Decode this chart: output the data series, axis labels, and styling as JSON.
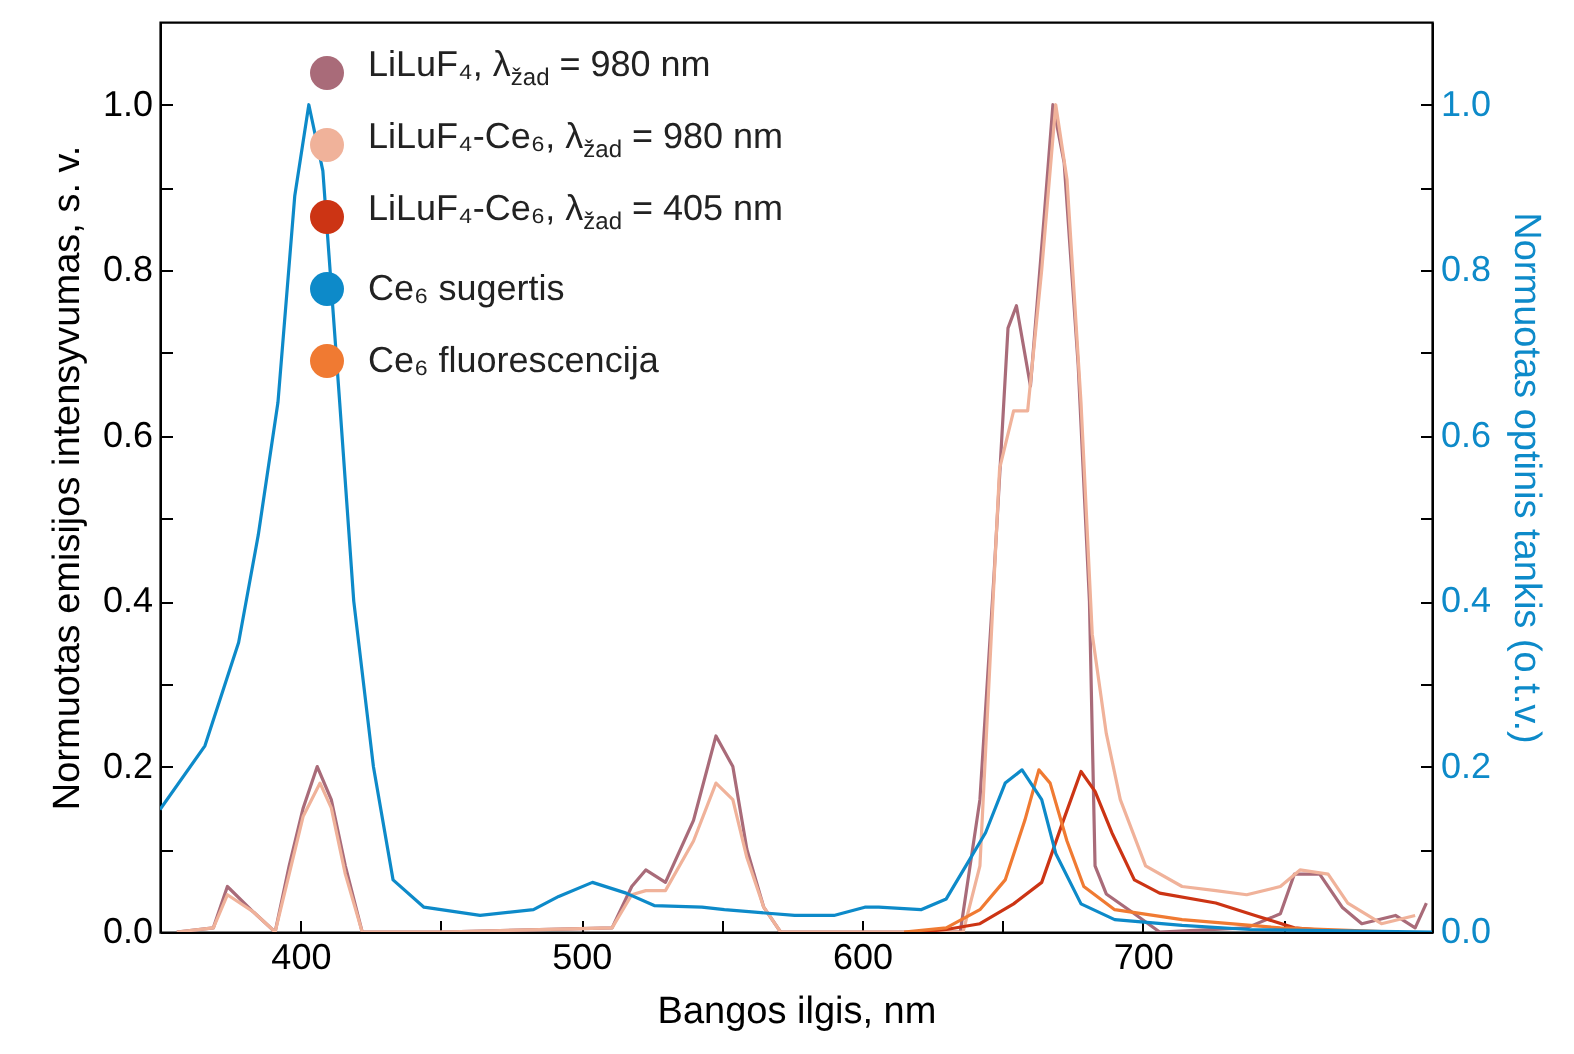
{
  "chart_data": {
    "type": "line",
    "xlabel": "Bangos ilgis, nm",
    "ylabel": "Normuotas emisijos intensyvumas, s. v.",
    "y2label": "Normuotas optinis tankis (o.t.v.)",
    "xlim": [
      350,
      803
    ],
    "ylim": [
      0,
      1.1
    ],
    "y2lim": [
      0,
      1.1
    ],
    "xticks": [
      400,
      {
        "value": 450,
        "label": null
      },
      500,
      {
        "value": 550,
        "label": null
      },
      600,
      {
        "value": 650,
        "label": null
      },
      700,
      {
        "value": 750,
        "label": null
      }
    ],
    "yticks": [
      {
        "value": 0,
        "label": "0.0"
      },
      {
        "value": 0.1,
        "label": null
      },
      0.2,
      {
        "value": 0.3,
        "label": null
      },
      0.4,
      {
        "value": 0.5,
        "label": null
      },
      0.6,
      {
        "value": 0.7,
        "label": null
      },
      0.8,
      {
        "value": 0.9,
        "label": null
      },
      {
        "value": 1,
        "label": "1.0"
      }
    ],
    "y2ticks": [
      {
        "value": 0,
        "label": "0.0"
      },
      {
        "value": 0.1,
        "label": null
      },
      0.2,
      {
        "value": 0.3,
        "label": null
      },
      0.4,
      {
        "value": 0.5,
        "label": null
      },
      0.6,
      {
        "value": 0.7,
        "label": null
      },
      0.8,
      {
        "value": 0.9,
        "label": null
      },
      {
        "value": 1,
        "label": "1.0"
      }
    ],
    "grid": false,
    "legend": "top",
    "series": [
      {
        "name": "LiLuF₄, λ$_{žad}$ = 980 nm",
        "color": "#a96b79",
        "x": [
          356,
          369,
          374,
          383,
          391,
          396,
          401,
          406,
          411,
          416,
          422,
          450,
          511,
          518,
          523,
          530,
          540,
          548,
          554,
          559,
          565,
          571,
          635,
          642,
          647,
          652,
          655,
          660,
          665,
          668,
          672,
          677,
          681,
          683,
          687,
          697,
          706,
          737,
          749,
          754,
          763,
          771,
          778,
          790,
          797,
          801
        ],
        "values": [
          0,
          0.005,
          0.055,
          0.025,
          0,
          0.08,
          0.15,
          0.2,
          0.16,
          0.08,
          0,
          0,
          0.005,
          0.055,
          0.075,
          0.06,
          0.135,
          0.237,
          0.2,
          0.1,
          0.03,
          0,
          0,
          0.16,
          0.43,
          0.73,
          0.757,
          0.66,
          0.87,
          1.0,
          0.93,
          0.685,
          0.4,
          0.08,
          0.046,
          0.022,
          0,
          0.005,
          0.022,
          0.07,
          0.07,
          0.03,
          0.01,
          0.02,
          0.005,
          0.035
        ]
      },
      {
        "name": "LiLuF₄-Ce₆, λ$_{žad}$ = 980 nm",
        "color": "#f0b29a",
        "x": [
          356,
          369,
          374,
          383,
          391,
          396,
          401,
          407,
          411,
          416,
          422,
          450,
          511,
          518,
          523,
          530,
          540,
          548,
          554,
          559,
          565,
          571,
          636,
          642,
          649,
          654,
          659,
          664,
          669,
          673,
          678,
          682,
          687,
          692,
          701,
          714,
          726,
          737,
          749,
          756,
          766,
          773,
          785,
          797
        ],
        "values": [
          0,
          0.005,
          0.045,
          0.025,
          0,
          0.07,
          0.14,
          0.18,
          0.15,
          0.07,
          0,
          0,
          0.005,
          0.045,
          0.05,
          0.05,
          0.11,
          0.18,
          0.16,
          0.09,
          0.03,
          0,
          0,
          0.08,
          0.56,
          0.63,
          0.63,
          0.8,
          1.0,
          0.91,
          0.64,
          0.36,
          0.24,
          0.16,
          0.08,
          0.055,
          0.05,
          0.045,
          0.055,
          0.075,
          0.07,
          0.035,
          0.01,
          0.02
        ]
      },
      {
        "name": "LiLuF₄-Ce₆, λ$_{žad}$ = 405 nm",
        "color": "#cc3414",
        "x": [
          620,
          630,
          642,
          654,
          664,
          671,
          678,
          683,
          689,
          697,
          706,
          726,
          740,
          754,
          771
        ],
        "values": [
          0,
          0.003,
          0.01,
          0.034,
          0.06,
          0.128,
          0.194,
          0.17,
          0.12,
          0.063,
          0.047,
          0.035,
          0.02,
          0.005,
          0
        ]
      },
      {
        "name": "Ce₆ sugertis",
        "color": "#0d8ac9",
        "axis": "y2",
        "x": [
          350,
          366,
          378,
          385,
          392,
          398,
          403,
          408,
          414,
          419,
          426,
          433,
          444,
          464,
          483,
          492,
          504,
          516,
          526,
          543,
          551,
          576,
          590,
          601,
          606,
          621,
          630,
          637,
          644,
          651,
          657,
          664,
          669,
          678,
          690,
          714,
          738,
          803
        ],
        "values": [
          0.148,
          0.225,
          0.35,
          0.48,
          0.64,
          0.89,
          1.0,
          0.92,
          0.64,
          0.4,
          0.2,
          0.063,
          0.03,
          0.02,
          0.027,
          0.043,
          0.06,
          0.047,
          0.032,
          0.03,
          0.027,
          0.02,
          0.02,
          0.03,
          0.03,
          0.027,
          0.04,
          0.08,
          0.12,
          0.18,
          0.196,
          0.16,
          0.095,
          0.034,
          0.015,
          0.008,
          0.003,
          0
        ]
      },
      {
        "name": "Ce₆ fluorescencija",
        "color": "#f07a32",
        "x": [
          615,
          630,
          642,
          651,
          658,
          663,
          667,
          673,
          679,
          690,
          714,
          749,
          790
        ],
        "values": [
          0,
          0.005,
          0.027,
          0.063,
          0.135,
          0.196,
          0.18,
          0.11,
          0.055,
          0.027,
          0.015,
          0.005,
          0
        ]
      }
    ]
  }
}
